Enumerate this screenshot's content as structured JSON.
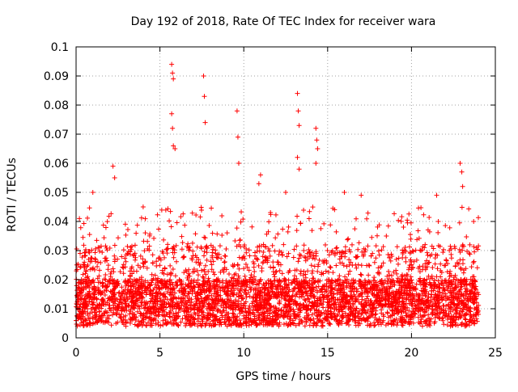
{
  "chart_data": {
    "type": "scatter",
    "title": "Day 192 of 2018, Rate Of TEC Index for receiver wara",
    "xlabel": "GPS time / hours",
    "ylabel": "ROTI / TECUs",
    "xlim": [
      0,
      25
    ],
    "ylim": [
      0,
      0.1
    ],
    "xticks": [
      0,
      5,
      10,
      15,
      20,
      25
    ],
    "xtick_labels": [
      "0",
      "5",
      "10",
      "15",
      "20",
      "25"
    ],
    "yticks": [
      0,
      0.01,
      0.02,
      0.03,
      0.04,
      0.05,
      0.06,
      0.07,
      0.08,
      0.09,
      0.1
    ],
    "ytick_labels": [
      "0",
      "0.01",
      "0.02",
      "0.03",
      "0.04",
      "0.05",
      "0.06",
      "0.07",
      "0.08",
      "0.09",
      "0.1"
    ],
    "grid": true,
    "marker": "+",
    "color": "#ff0000",
    "x_range_observed": [
      0,
      24
    ],
    "series": [
      {
        "x": [
          5.7,
          5.75,
          5.8,
          5.7,
          5.75,
          5.8,
          5.9,
          7.6,
          7.65,
          7.7,
          9.6,
          9.65,
          9.7,
          13.2,
          13.25,
          13.3,
          13.2,
          13.3,
          14.3,
          14.35,
          14.4,
          14.3,
          22.9,
          23.0,
          23.05,
          2.2,
          2.3,
          11.0,
          10.9,
          1.0,
          4.0,
          17.0,
          21.5,
          0.2,
          12.5,
          16.0,
          18.5
        ],
        "y": [
          0.094,
          0.091,
          0.089,
          0.077,
          0.072,
          0.066,
          0.065,
          0.09,
          0.083,
          0.074,
          0.078,
          0.069,
          0.06,
          0.084,
          0.078,
          0.073,
          0.062,
          0.058,
          0.072,
          0.068,
          0.065,
          0.06,
          0.06,
          0.057,
          0.052,
          0.059,
          0.055,
          0.056,
          0.053,
          0.05,
          0.045,
          0.049,
          0.049,
          0.041,
          0.05,
          0.05,
          0.035
        ]
      }
    ]
  }
}
